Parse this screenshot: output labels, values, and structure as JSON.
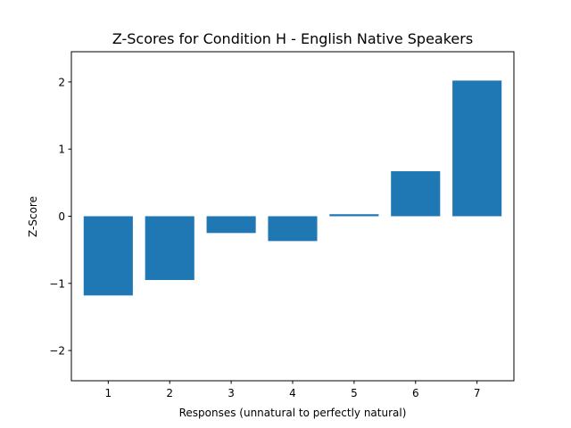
{
  "chart_data": {
    "type": "bar",
    "title": "Z-Scores for Condition H - English Native Speakers",
    "xlabel": "Responses (unnatural to perfectly natural)",
    "ylabel": "Z-Score",
    "categories": [
      "1",
      "2",
      "3",
      "4",
      "5",
      "6",
      "7"
    ],
    "values": [
      -1.18,
      -0.95,
      -0.25,
      -0.37,
      0.03,
      0.67,
      2.02
    ],
    "ylim": [
      -2.45,
      2.45
    ],
    "yticks": [
      -2,
      -1,
      0,
      1,
      2
    ],
    "ytick_labels": [
      "−2",
      "−1",
      "0",
      "1",
      "2"
    ],
    "bar_color": "#1f77b4",
    "grid": false,
    "legend": "none"
  }
}
